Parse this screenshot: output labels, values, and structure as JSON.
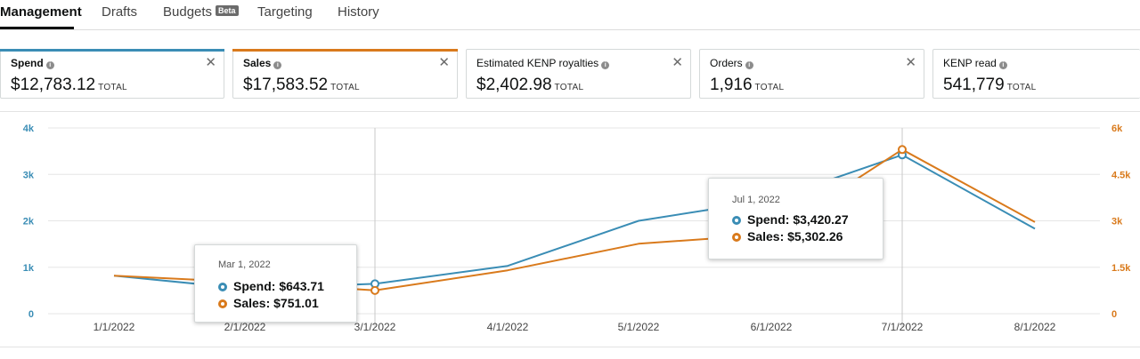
{
  "tabs": [
    {
      "label": "Management",
      "active": true
    },
    {
      "label": "Drafts"
    },
    {
      "label": "Budgets",
      "badge": "Beta"
    },
    {
      "label": "Targeting"
    },
    {
      "label": "History"
    }
  ],
  "metrics": [
    {
      "title": "Spend",
      "value": "$12,783.12",
      "suffix": "TOTAL",
      "selected": true,
      "color": "#3a8db5",
      "closable": true
    },
    {
      "title": "Sales",
      "value": "$17,583.52",
      "suffix": "TOTAL",
      "selected": true,
      "color": "#d97a1c",
      "closable": true
    },
    {
      "title": "Estimated KENP royalties",
      "value": "$2,402.98",
      "suffix": "TOTAL",
      "selected": false,
      "closable": true
    },
    {
      "title": "Orders",
      "value": "1,916",
      "suffix": "TOTAL",
      "selected": false,
      "closable": true
    },
    {
      "title": "KENP read",
      "value": "541,779",
      "suffix": "TOTAL",
      "selected": false,
      "closable": false
    }
  ],
  "colors": {
    "spend": "#3a8db5",
    "sales": "#d97a1c",
    "grid": "#e6e6e6",
    "hover_line": "#c8c8c8"
  },
  "chart_data": {
    "type": "line",
    "x": [
      "1/1/2022",
      "2/1/2022",
      "3/1/2022",
      "4/1/2022",
      "5/1/2022",
      "6/1/2022",
      "7/1/2022",
      "8/1/2022"
    ],
    "series": [
      {
        "name": "Spend",
        "axis": "left",
        "values": [
          820,
          540,
          643.71,
          1030,
          2000,
          2450,
          3420.27,
          1830
        ]
      },
      {
        "name": "Sales",
        "axis": "right",
        "values": [
          1230,
          1020,
          751.01,
          1400,
          2260,
          2560,
          5302.26,
          2960
        ]
      }
    ],
    "left_axis": {
      "ticks": [
        "0",
        "1k",
        "2k",
        "3k",
        "4k"
      ],
      "range": [
        0,
        4000
      ]
    },
    "right_axis": {
      "ticks": [
        "0",
        "1.5k",
        "3k",
        "4.5k",
        "6k"
      ],
      "range": [
        0,
        6000
      ]
    },
    "grid": true,
    "legend": "none"
  },
  "tooltips": [
    {
      "date": "Mar 1, 2022",
      "spend": "Spend: $643.71",
      "sales": "Sales: $751.01",
      "index": 2
    },
    {
      "date": "Jul 1, 2022",
      "spend": "Spend: $3,420.27",
      "sales": "Sales: $5,302.26",
      "index": 6
    }
  ]
}
